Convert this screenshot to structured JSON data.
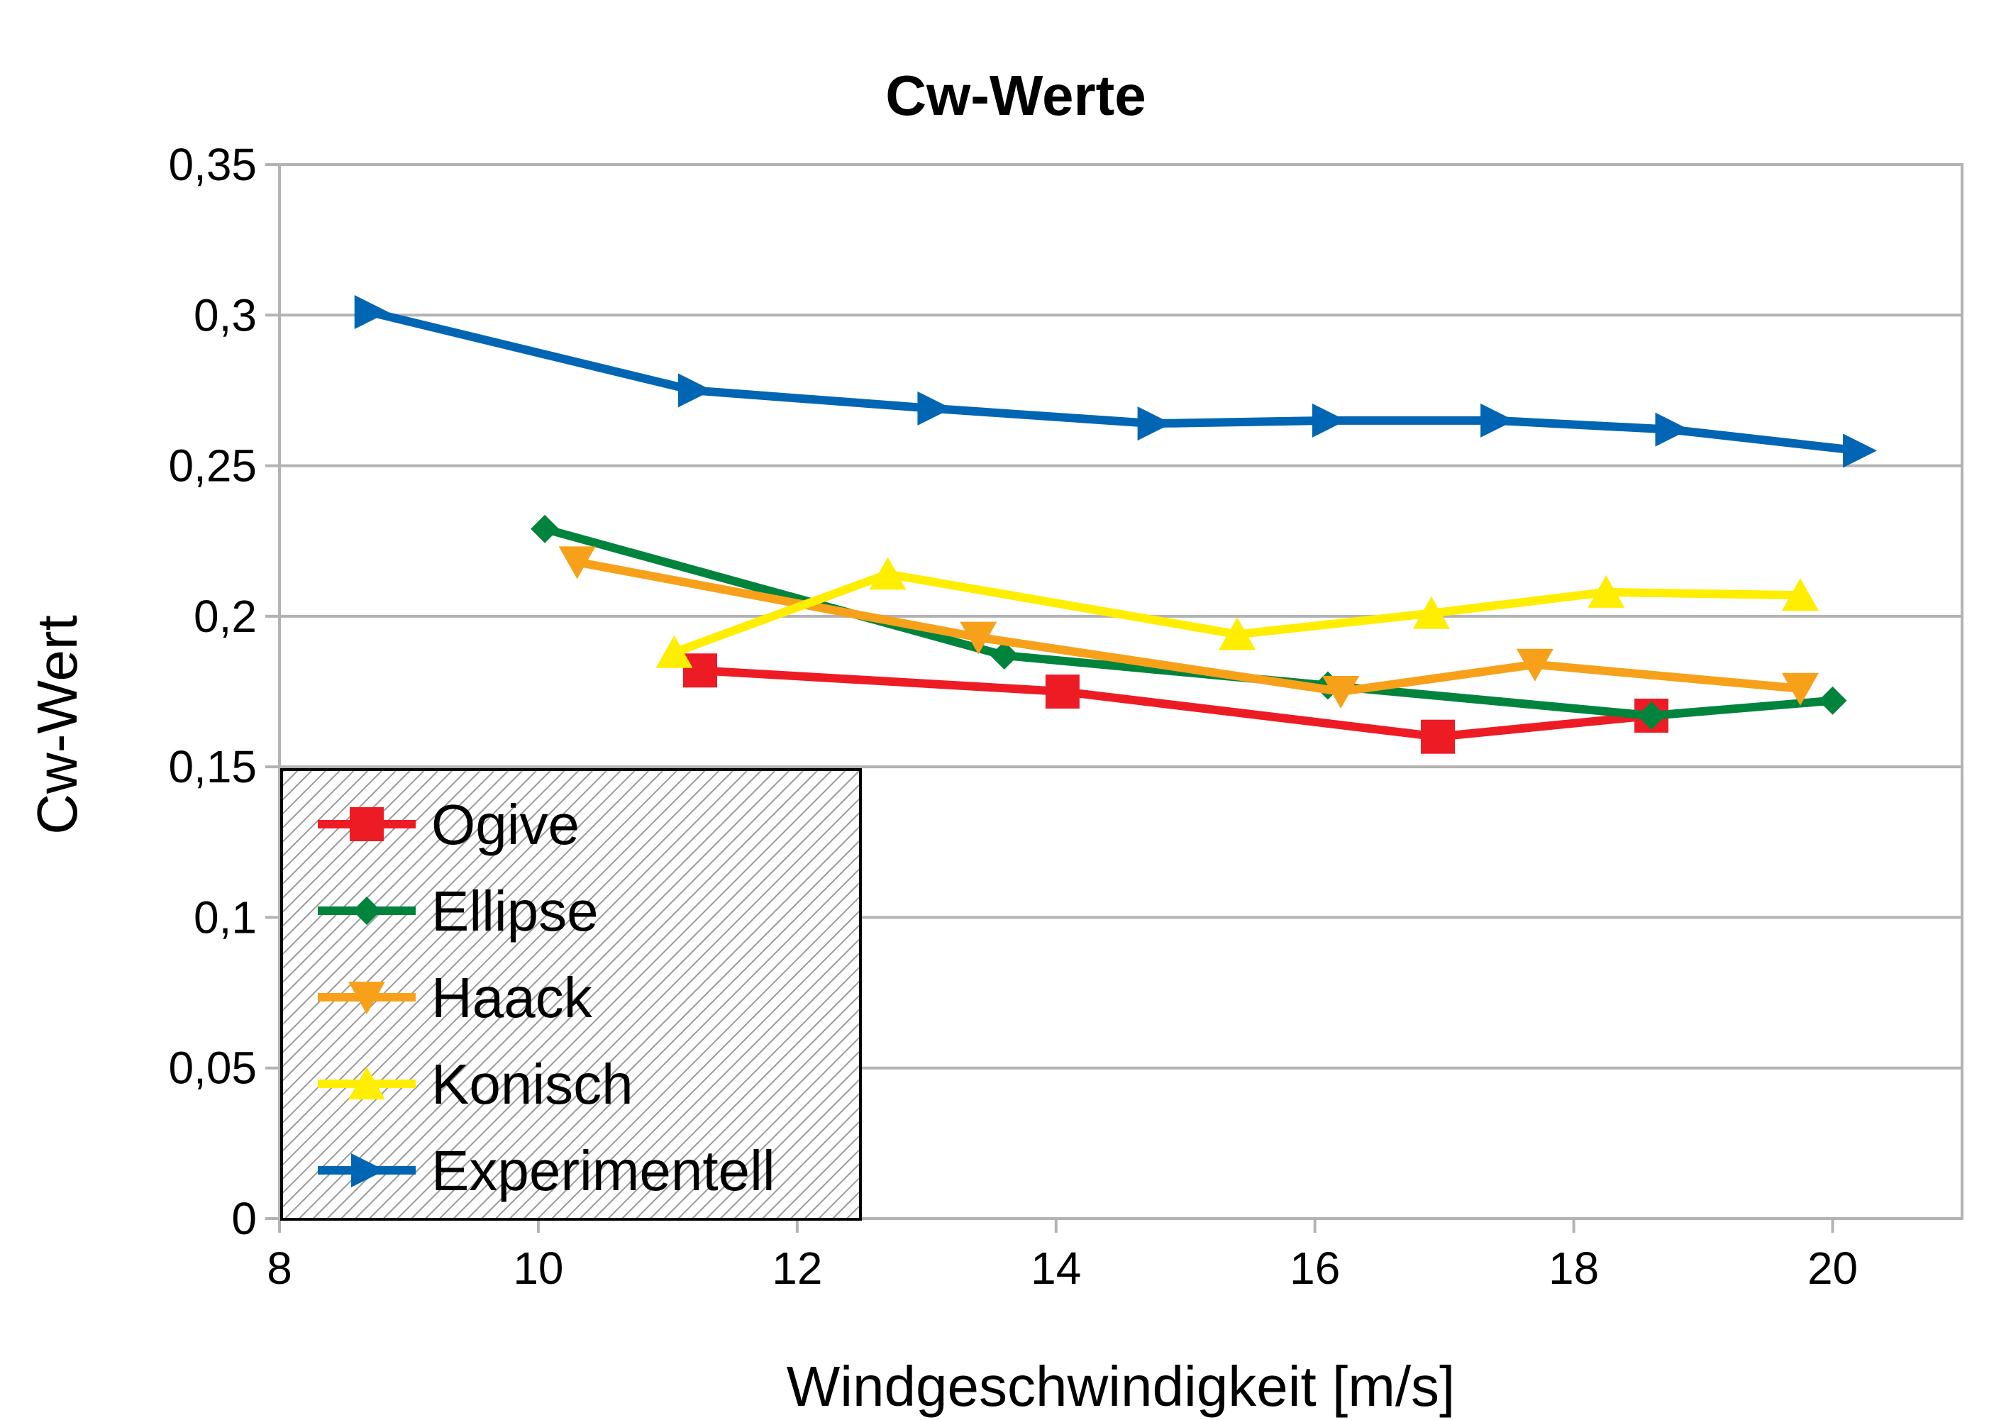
{
  "chart_data": {
    "type": "line",
    "title": "Cw-Werte",
    "xlabel": "Windgeschwindigkeit [m/s]",
    "ylabel": "Cw-Wert",
    "xlim": [
      8,
      21
    ],
    "ylim": [
      0,
      0.35
    ],
    "x_ticks": [
      8,
      10,
      12,
      14,
      16,
      18,
      20
    ],
    "x_tick_labels": [
      "8",
      "10",
      "12",
      "14",
      "16",
      "18",
      "20"
    ],
    "y_ticks": [
      0,
      0.05,
      0.1,
      0.15,
      0.2,
      0.25,
      0.3,
      0.35
    ],
    "y_tick_labels": [
      "0",
      "0,05",
      "0,1",
      "0,15",
      "0,2",
      "0,25",
      "0,3",
      "0,35"
    ],
    "grid": true,
    "legend_position": "bottom-left",
    "series": [
      {
        "name": "Ogive",
        "color": "#ed1c24",
        "marker": "square",
        "x": [
          11.25,
          14.05,
          16.95,
          18.6
        ],
        "y": [
          0.182,
          0.175,
          0.16,
          0.167
        ]
      },
      {
        "name": "Ellipse",
        "color": "#00843d",
        "marker": "diamond",
        "x": [
          10.05,
          13.6,
          16.1,
          18.6,
          20.0
        ],
        "y": [
          0.229,
          0.187,
          0.177,
          0.167,
          0.172
        ]
      },
      {
        "name": "Haack",
        "color": "#f7a11a",
        "marker": "triangle-down",
        "x": [
          10.3,
          13.4,
          16.2,
          17.7,
          19.75
        ],
        "y": [
          0.218,
          0.193,
          0.175,
          0.184,
          0.176
        ]
      },
      {
        "name": "Konisch",
        "color": "#ffee00",
        "marker": "triangle-up",
        "x": [
          11.05,
          12.7,
          15.4,
          16.9,
          18.25,
          19.75
        ],
        "y": [
          0.188,
          0.214,
          0.194,
          0.201,
          0.208,
          0.207
        ]
      },
      {
        "name": "Experimentell",
        "color": "#0066b3",
        "marker": "triangle-right",
        "x": [
          8.7,
          11.2,
          13.05,
          14.75,
          16.1,
          17.4,
          18.75,
          20.2
        ],
        "y": [
          0.301,
          0.275,
          0.269,
          0.264,
          0.265,
          0.265,
          0.262,
          0.255
        ]
      }
    ]
  }
}
